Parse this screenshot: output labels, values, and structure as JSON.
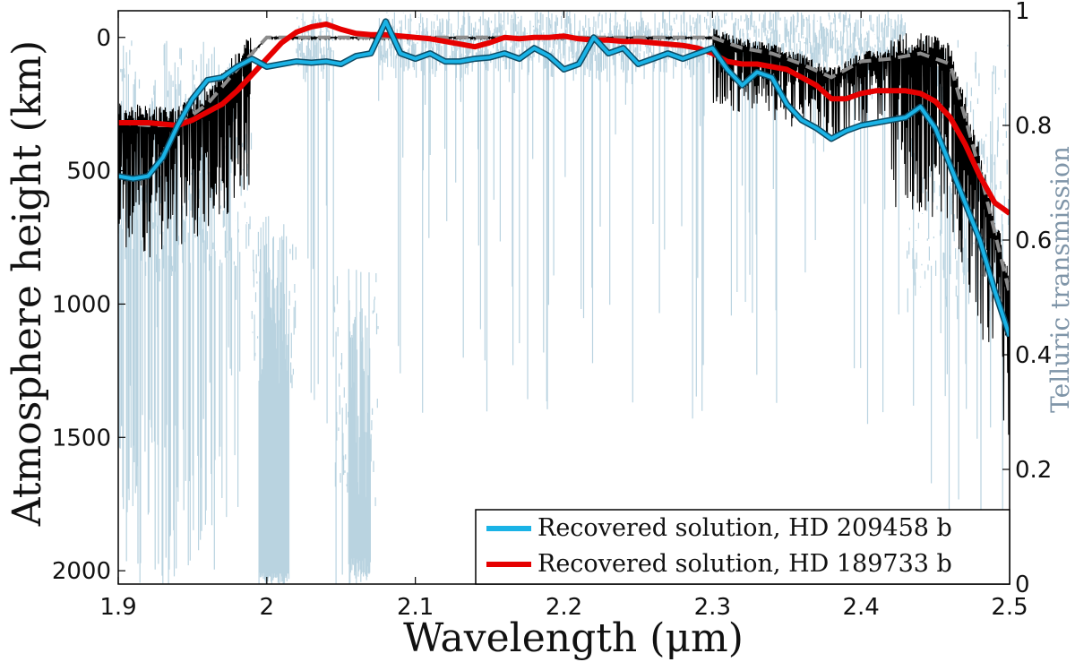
{
  "chart_data": {
    "type": "line",
    "title": "",
    "xlabel": "Wavelength (μm)",
    "ylabel": "Atmosphere height (km)",
    "y2label": "Telluric transmission",
    "xlim": [
      1.9,
      2.5
    ],
    "ylim": [
      2050,
      -100
    ],
    "y2lim": [
      0,
      1
    ],
    "xticks": [
      1.9,
      2.0,
      2.1,
      2.2,
      2.3,
      2.4,
      2.5
    ],
    "xtick_labels": [
      "1.9",
      "2",
      "2.1",
      "2.2",
      "2.3",
      "2.4",
      "2.5"
    ],
    "yticks": [
      0,
      500,
      1000,
      1500,
      2000
    ],
    "ytick_labels": [
      "0",
      "500",
      "1000",
      "1500",
      "2000"
    ],
    "y2ticks": [
      0,
      0.2,
      0.4,
      0.6,
      0.8,
      1.0
    ],
    "y2tick_labels": [
      "0",
      "0.2",
      "0.4",
      "0.6",
      "0.8",
      "1"
    ],
    "grid": false,
    "legend_position": "bottom-right",
    "colors": {
      "telluric": "#b9d3e0",
      "hd209458": "#1ab3e6",
      "hd189733": "#e60000",
      "model_dashed": "#8c8c8c",
      "model_black": "#000000"
    },
    "series": [
      {
        "name": "Recovered solution, HD 209458 b",
        "axis": "left",
        "x": [
          1.9,
          1.91,
          1.92,
          1.93,
          1.94,
          1.95,
          1.96,
          1.97,
          1.98,
          1.99,
          2.0,
          2.01,
          2.02,
          2.03,
          2.04,
          2.05,
          2.06,
          2.07,
          2.08,
          2.09,
          2.1,
          2.11,
          2.12,
          2.13,
          2.14,
          2.15,
          2.16,
          2.17,
          2.18,
          2.19,
          2.2,
          2.21,
          2.22,
          2.23,
          2.24,
          2.25,
          2.26,
          2.27,
          2.28,
          2.29,
          2.3,
          2.31,
          2.32,
          2.33,
          2.34,
          2.35,
          2.36,
          2.37,
          2.38,
          2.39,
          2.4,
          2.41,
          2.42,
          2.43,
          2.44,
          2.45,
          2.46,
          2.47,
          2.48,
          2.49,
          2.5
        ],
        "values": [
          520,
          530,
          520,
          450,
          330,
          230,
          160,
          150,
          110,
          80,
          110,
          100,
          90,
          95,
          90,
          100,
          70,
          60,
          -60,
          60,
          80,
          60,
          90,
          90,
          80,
          75,
          60,
          80,
          40,
          70,
          120,
          100,
          0,
          60,
          40,
          100,
          80,
          60,
          80,
          60,
          40,
          120,
          180,
          130,
          150,
          250,
          310,
          340,
          380,
          350,
          330,
          320,
          310,
          300,
          260,
          340,
          480,
          620,
          760,
          950,
          1120
        ]
      },
      {
        "name": "Recovered solution, HD 189733 b",
        "axis": "left",
        "x": [
          1.9,
          1.91,
          1.92,
          1.93,
          1.94,
          1.95,
          1.96,
          1.97,
          1.98,
          1.99,
          2.0,
          2.01,
          2.02,
          2.03,
          2.04,
          2.05,
          2.06,
          2.07,
          2.08,
          2.09,
          2.1,
          2.11,
          2.12,
          2.13,
          2.14,
          2.15,
          2.16,
          2.17,
          2.18,
          2.19,
          2.2,
          2.21,
          2.22,
          2.23,
          2.24,
          2.25,
          2.26,
          2.27,
          2.28,
          2.29,
          2.3,
          2.31,
          2.32,
          2.33,
          2.34,
          2.35,
          2.36,
          2.37,
          2.38,
          2.39,
          2.4,
          2.41,
          2.42,
          2.43,
          2.44,
          2.45,
          2.46,
          2.47,
          2.48,
          2.49,
          2.5
        ],
        "values": [
          320,
          320,
          320,
          325,
          330,
          310,
          280,
          250,
          200,
          140,
          80,
          20,
          -20,
          -40,
          -50,
          -30,
          -15,
          -10,
          -10,
          -5,
          0,
          5,
          15,
          25,
          35,
          20,
          0,
          5,
          0,
          0,
          -5,
          5,
          10,
          10,
          15,
          15,
          20,
          25,
          30,
          40,
          60,
          90,
          100,
          100,
          110,
          120,
          150,
          180,
          230,
          230,
          210,
          200,
          200,
          200,
          210,
          240,
          300,
          400,
          520,
          620,
          660
        ]
      },
      {
        "name": "Model (dashed)",
        "axis": "left",
        "x": [
          1.9,
          1.92,
          1.94,
          1.96,
          1.98,
          2.0,
          2.05,
          2.1,
          2.15,
          2.2,
          2.25,
          2.3,
          2.32,
          2.34,
          2.36,
          2.38,
          2.4,
          2.42,
          2.44,
          2.46,
          2.48,
          2.5
        ],
        "values": [
          320,
          330,
          330,
          250,
          120,
          0,
          0,
          0,
          0,
          0,
          0,
          0,
          40,
          60,
          100,
          150,
          90,
          80,
          60,
          100,
          500,
          960
        ]
      }
    ]
  },
  "legend": {
    "items": [
      {
        "label": "Recovered solution, HD 209458 b",
        "color": "#1ab3e6"
      },
      {
        "label": "Recovered solution, HD 189733 b",
        "color": "#e60000"
      }
    ]
  }
}
